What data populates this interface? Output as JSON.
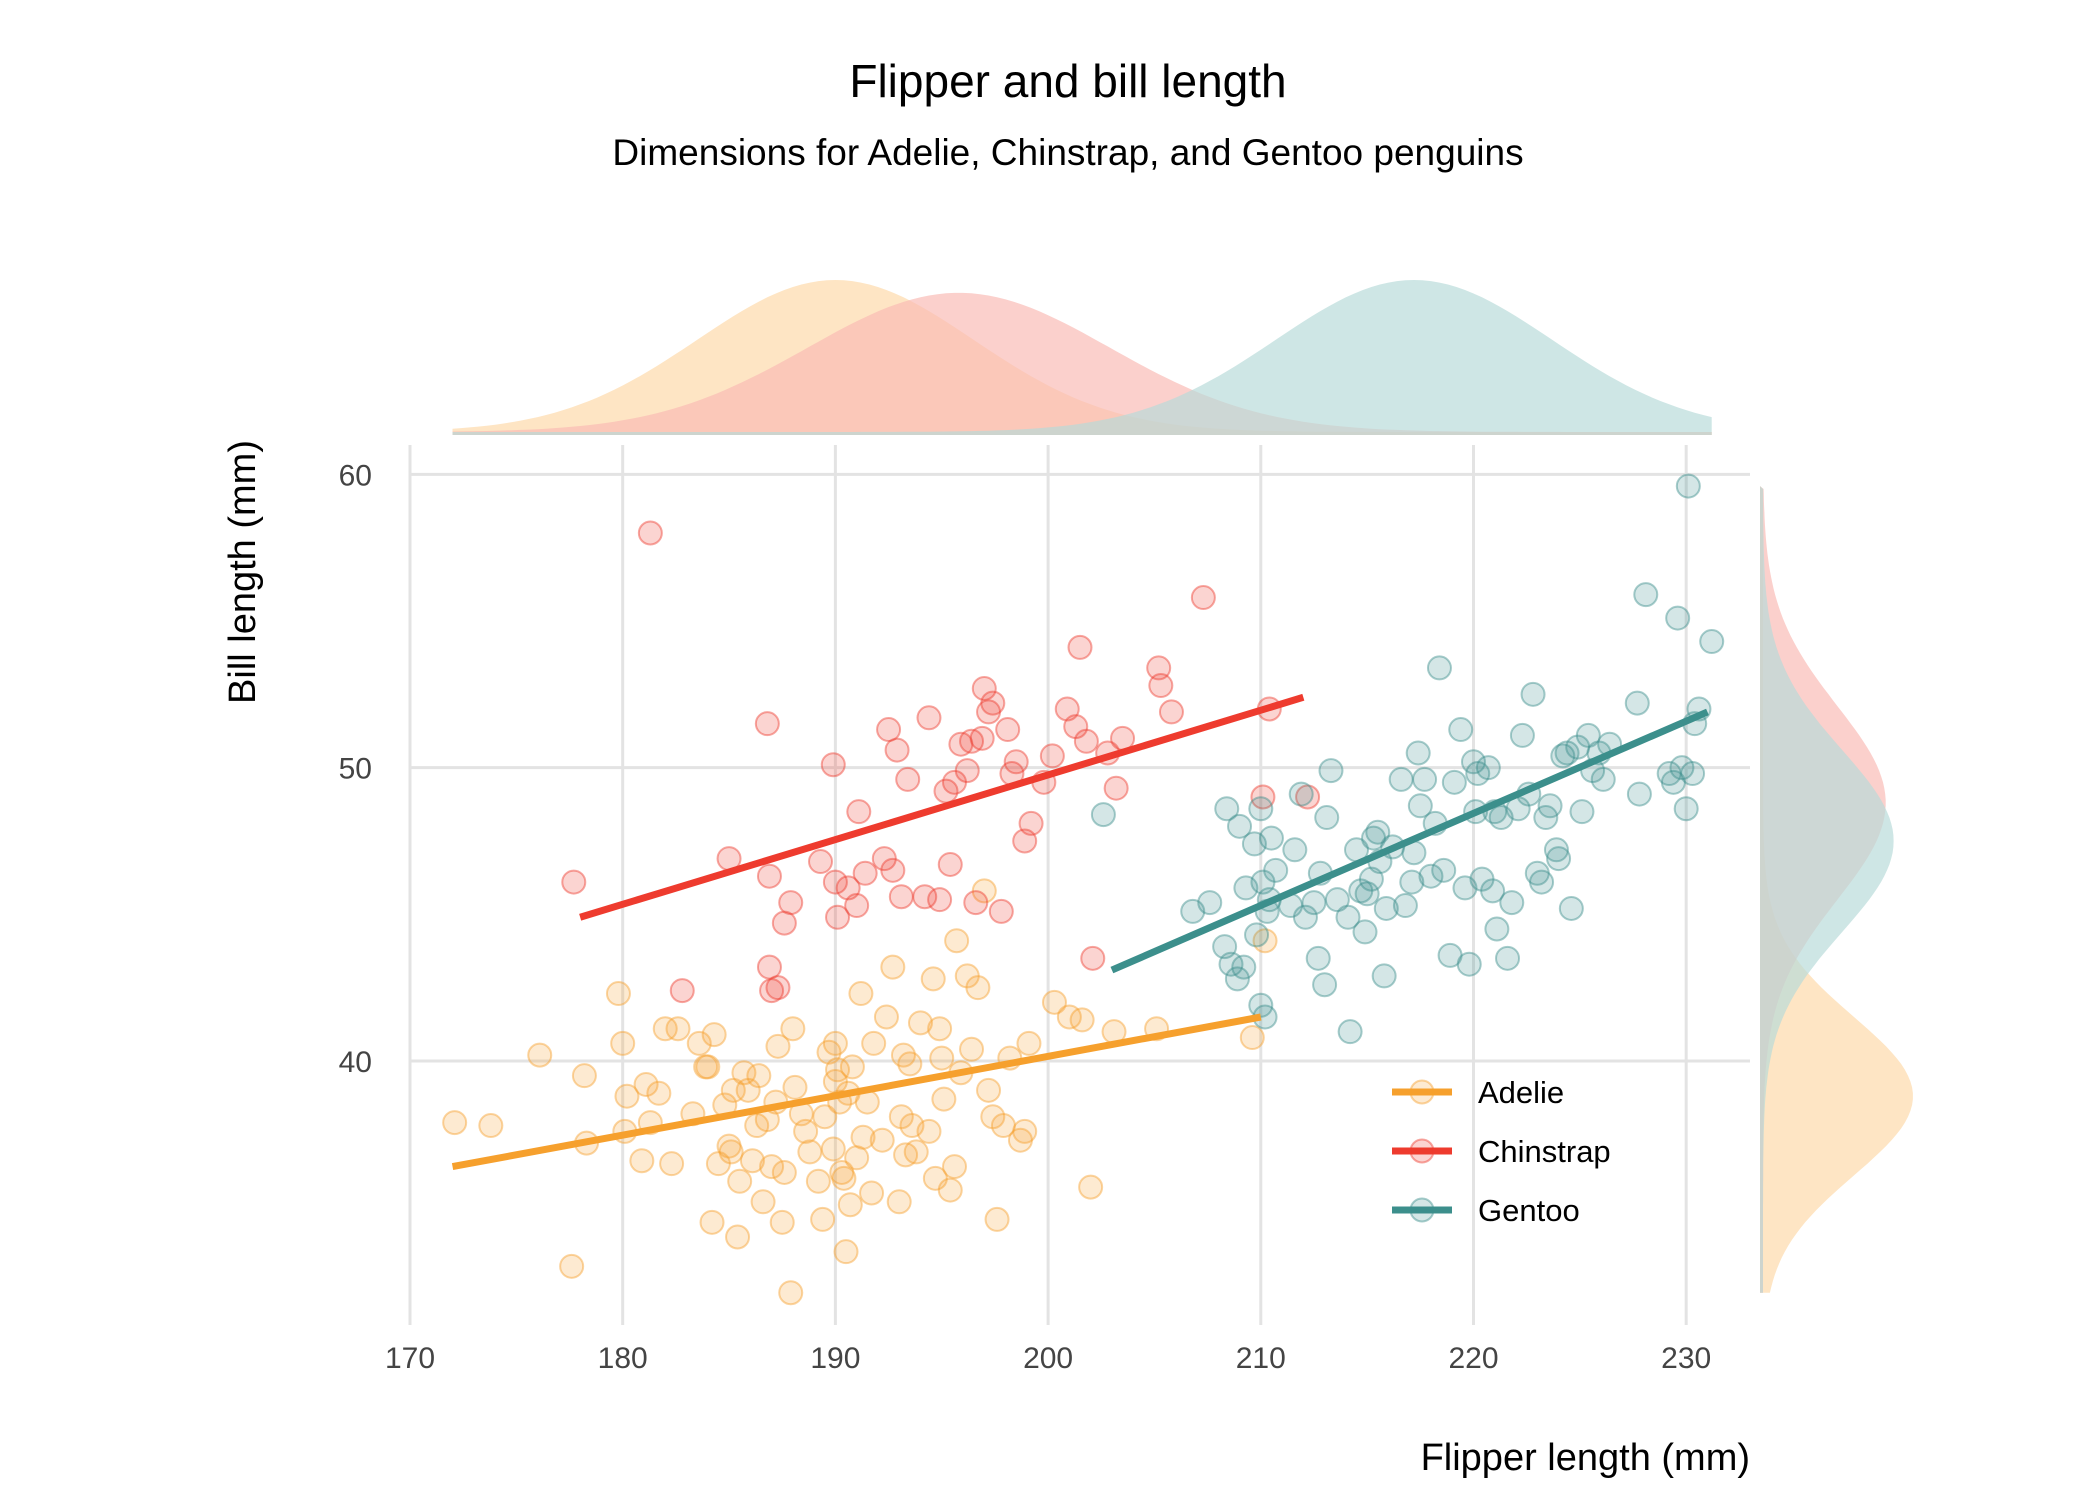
{
  "chart_data": {
    "type": "scatter",
    "title": "Flipper and bill length",
    "subtitle": "Dimensions for Adelie, Chinstrap, and Gentoo penguins",
    "xlabel": "Flipper length (mm)",
    "ylabel": "Bill length (mm)",
    "xlim": [
      170,
      233
    ],
    "ylim": [
      31,
      61
    ],
    "x_ticks": [
      170,
      180,
      190,
      200,
      210,
      220,
      230
    ],
    "y_ticks": [
      40,
      50,
      60
    ],
    "grid": true,
    "legend_position": "bottom-right",
    "marginal_densities": {
      "top": "flipper length by species",
      "right": "bill length by species"
    },
    "series": [
      {
        "name": "Adelie",
        "color": "#F6A02D",
        "fill": "#FDD9A8",
        "trend": {
          "x": [
            172,
            210
          ],
          "y": [
            36.4,
            41.5
          ]
        },
        "density_x": {
          "mean": 190,
          "sd": 6.5
        },
        "density_y": {
          "mean": 38.8,
          "sd": 2.7
        },
        "points": [
          [
            172.1,
            37.9
          ],
          [
            173.8,
            37.8
          ],
          [
            176.1,
            40.2
          ],
          [
            177.6,
            33.0
          ],
          [
            178.2,
            39.5
          ],
          [
            178.3,
            37.2
          ],
          [
            179.8,
            42.3
          ],
          [
            180.0,
            40.6
          ],
          [
            180.1,
            37.6
          ],
          [
            180.2,
            38.8
          ],
          [
            180.9,
            36.6
          ],
          [
            181.1,
            39.2
          ],
          [
            181.3,
            37.9
          ],
          [
            181.7,
            38.9
          ],
          [
            182.0,
            41.1
          ],
          [
            182.3,
            36.5
          ],
          [
            182.6,
            41.1
          ],
          [
            183.3,
            38.2
          ],
          [
            183.6,
            40.6
          ],
          [
            183.9,
            39.8
          ],
          [
            184.0,
            39.8
          ],
          [
            184.2,
            34.5
          ],
          [
            184.3,
            40.9
          ],
          [
            184.5,
            36.5
          ],
          [
            184.8,
            38.5
          ],
          [
            185.0,
            37.1
          ],
          [
            185.1,
            36.9
          ],
          [
            185.2,
            39.0
          ],
          [
            185.4,
            34.0
          ],
          [
            185.5,
            35.9
          ],
          [
            185.7,
            39.6
          ],
          [
            185.9,
            39.0
          ],
          [
            186.1,
            36.6
          ],
          [
            186.3,
            37.8
          ],
          [
            186.4,
            39.5
          ],
          [
            186.6,
            35.2
          ],
          [
            186.8,
            38.0
          ],
          [
            187.0,
            36.4
          ],
          [
            187.2,
            38.6
          ],
          [
            187.3,
            40.5
          ],
          [
            187.5,
            34.5
          ],
          [
            187.6,
            36.2
          ],
          [
            187.9,
            32.1
          ],
          [
            188.0,
            41.1
          ],
          [
            188.1,
            39.1
          ],
          [
            188.4,
            38.2
          ],
          [
            188.6,
            37.6
          ],
          [
            188.8,
            36.9
          ],
          [
            189.2,
            35.9
          ],
          [
            189.4,
            34.6
          ],
          [
            189.5,
            38.1
          ],
          [
            189.7,
            40.3
          ],
          [
            189.9,
            37.0
          ],
          [
            190.0,
            39.3
          ],
          [
            190.0,
            40.6
          ],
          [
            190.1,
            39.7
          ],
          [
            190.2,
            38.6
          ],
          [
            190.3,
            36.2
          ],
          [
            190.4,
            36.0
          ],
          [
            190.5,
            33.5
          ],
          [
            190.6,
            38.9
          ],
          [
            190.7,
            35.1
          ],
          [
            190.8,
            39.8
          ],
          [
            191.0,
            36.7
          ],
          [
            191.2,
            42.3
          ],
          [
            191.3,
            37.4
          ],
          [
            191.5,
            38.6
          ],
          [
            191.7,
            35.5
          ],
          [
            191.8,
            40.6
          ],
          [
            192.2,
            37.3
          ],
          [
            192.4,
            41.5
          ],
          [
            192.7,
            43.2
          ],
          [
            193.0,
            35.2
          ],
          [
            193.1,
            38.1
          ],
          [
            193.2,
            40.2
          ],
          [
            193.3,
            36.8
          ],
          [
            193.5,
            39.9
          ],
          [
            193.6,
            37.8
          ],
          [
            193.8,
            36.9
          ],
          [
            194.0,
            41.3
          ],
          [
            194.4,
            37.6
          ],
          [
            194.6,
            42.8
          ],
          [
            194.7,
            36.0
          ],
          [
            194.9,
            41.1
          ],
          [
            195.0,
            40.1
          ],
          [
            195.1,
            38.7
          ],
          [
            195.4,
            35.6
          ],
          [
            195.6,
            36.4
          ],
          [
            195.7,
            44.1
          ],
          [
            195.9,
            39.6
          ],
          [
            196.2,
            42.9
          ],
          [
            196.4,
            40.4
          ],
          [
            196.7,
            42.5
          ],
          [
            197.0,
            45.8
          ],
          [
            197.2,
            39.0
          ],
          [
            197.4,
            38.1
          ],
          [
            197.6,
            34.6
          ],
          [
            197.9,
            37.8
          ],
          [
            198.2,
            40.1
          ],
          [
            198.7,
            37.3
          ],
          [
            198.9,
            37.6
          ],
          [
            199.1,
            40.6
          ],
          [
            200.3,
            42.0
          ],
          [
            201.0,
            41.5
          ],
          [
            201.6,
            41.4
          ],
          [
            202.0,
            35.7
          ],
          [
            203.1,
            41.0
          ],
          [
            205.1,
            41.1
          ],
          [
            209.6,
            40.8
          ],
          [
            210.2,
            44.1
          ]
        ]
      },
      {
        "name": "Chinstrap",
        "color": "#EE3B2E",
        "fill": "#F9B9B4",
        "trend": {
          "x": [
            178,
            212
          ],
          "y": [
            44.9,
            52.4
          ]
        },
        "density_x": {
          "mean": 195.8,
          "sd": 7.1
        },
        "density_y": {
          "mean": 48.8,
          "sd": 3.3
        },
        "points": [
          [
            177.7,
            46.1
          ],
          [
            181.3,
            58.0
          ],
          [
            182.8,
            42.4
          ],
          [
            185.0,
            46.9
          ],
          [
            186.8,
            51.5
          ],
          [
            186.9,
            46.3
          ],
          [
            186.9,
            43.2
          ],
          [
            187.0,
            42.4
          ],
          [
            187.3,
            42.5
          ],
          [
            187.6,
            44.7
          ],
          [
            187.9,
            45.4
          ],
          [
            189.3,
            46.8
          ],
          [
            189.9,
            50.1
          ],
          [
            190.0,
            46.1
          ],
          [
            190.1,
            44.9
          ],
          [
            190.6,
            45.9
          ],
          [
            191.0,
            45.3
          ],
          [
            191.1,
            48.5
          ],
          [
            191.4,
            46.4
          ],
          [
            192.3,
            46.9
          ],
          [
            192.5,
            51.3
          ],
          [
            192.7,
            46.5
          ],
          [
            192.9,
            50.6
          ],
          [
            193.1,
            45.6
          ],
          [
            193.4,
            49.6
          ],
          [
            194.2,
            45.6
          ],
          [
            194.4,
            51.7
          ],
          [
            194.9,
            45.5
          ],
          [
            195.2,
            49.2
          ],
          [
            195.4,
            46.7
          ],
          [
            195.6,
            49.5
          ],
          [
            195.9,
            50.8
          ],
          [
            196.2,
            49.9
          ],
          [
            196.4,
            50.9
          ],
          [
            196.6,
            45.4
          ],
          [
            196.9,
            51.0
          ],
          [
            197.0,
            52.7
          ],
          [
            197.2,
            51.9
          ],
          [
            197.4,
            52.2
          ],
          [
            197.8,
            45.1
          ],
          [
            198.1,
            51.3
          ],
          [
            198.3,
            49.8
          ],
          [
            198.5,
            50.2
          ],
          [
            198.9,
            47.5
          ],
          [
            199.2,
            48.1
          ],
          [
            199.8,
            49.5
          ],
          [
            200.2,
            50.4
          ],
          [
            200.9,
            52.0
          ],
          [
            201.3,
            51.4
          ],
          [
            201.5,
            54.1
          ],
          [
            201.8,
            50.9
          ],
          [
            202.1,
            43.5
          ],
          [
            202.8,
            50.5
          ],
          [
            203.2,
            49.3
          ],
          [
            203.5,
            51.0
          ],
          [
            205.2,
            53.4
          ],
          [
            205.3,
            52.8
          ],
          [
            205.8,
            51.9
          ],
          [
            207.3,
            55.8
          ],
          [
            210.1,
            49.0
          ],
          [
            210.4,
            52.0
          ],
          [
            212.2,
            49.0
          ]
        ]
      },
      {
        "name": "Gentoo",
        "color": "#3C8F8C",
        "fill": "#B7DAD8",
        "trend": {
          "x": [
            203,
            231
          ],
          "y": [
            43.1,
            51.9
          ]
        },
        "density_x": {
          "mean": 217.2,
          "sd": 6.5
        },
        "density_y": {
          "mean": 47.5,
          "sd": 3.1
        },
        "points": [
          [
            202.6,
            48.4
          ],
          [
            206.8,
            45.1
          ],
          [
            207.6,
            45.4
          ],
          [
            208.3,
            43.9
          ],
          [
            208.4,
            48.6
          ],
          [
            208.6,
            43.3
          ],
          [
            208.9,
            42.8
          ],
          [
            209.0,
            48.0
          ],
          [
            209.2,
            43.2
          ],
          [
            209.3,
            45.9
          ],
          [
            209.7,
            47.4
          ],
          [
            209.8,
            44.3
          ],
          [
            210.0,
            48.6
          ],
          [
            210.0,
            41.9
          ],
          [
            210.1,
            46.1
          ],
          [
            210.2,
            41.5
          ],
          [
            210.3,
            45.1
          ],
          [
            210.4,
            45.5
          ],
          [
            210.5,
            47.6
          ],
          [
            210.7,
            46.5
          ],
          [
            211.4,
            45.3
          ],
          [
            211.6,
            47.2
          ],
          [
            211.9,
            49.1
          ],
          [
            212.1,
            44.9
          ],
          [
            212.5,
            45.4
          ],
          [
            212.7,
            43.5
          ],
          [
            212.8,
            46.4
          ],
          [
            213.0,
            42.6
          ],
          [
            213.1,
            48.3
          ],
          [
            213.3,
            49.9
          ],
          [
            213.6,
            45.5
          ],
          [
            214.1,
            44.9
          ],
          [
            214.2,
            41.0
          ],
          [
            214.5,
            47.2
          ],
          [
            214.7,
            45.8
          ],
          [
            214.9,
            44.4
          ],
          [
            215.0,
            45.7
          ],
          [
            215.2,
            46.2
          ],
          [
            215.3,
            47.6
          ],
          [
            215.5,
            47.8
          ],
          [
            215.6,
            46.8
          ],
          [
            215.8,
            42.9
          ],
          [
            215.9,
            45.2
          ],
          [
            216.2,
            47.3
          ],
          [
            216.6,
            49.6
          ],
          [
            216.8,
            45.3
          ],
          [
            217.1,
            46.1
          ],
          [
            217.2,
            47.1
          ],
          [
            217.4,
            50.5
          ],
          [
            217.5,
            48.7
          ],
          [
            217.7,
            49.6
          ],
          [
            218.0,
            46.3
          ],
          [
            218.2,
            48.1
          ],
          [
            218.4,
            53.4
          ],
          [
            218.6,
            46.5
          ],
          [
            218.9,
            43.6
          ],
          [
            219.1,
            49.5
          ],
          [
            219.4,
            51.3
          ],
          [
            219.6,
            45.9
          ],
          [
            219.8,
            43.3
          ],
          [
            220.0,
            50.2
          ],
          [
            220.1,
            48.5
          ],
          [
            220.2,
            49.8
          ],
          [
            220.4,
            46.2
          ],
          [
            220.7,
            50.0
          ],
          [
            220.9,
            45.8
          ],
          [
            221.0,
            48.5
          ],
          [
            221.1,
            44.5
          ],
          [
            221.3,
            48.3
          ],
          [
            221.6,
            43.5
          ],
          [
            221.8,
            45.4
          ],
          [
            222.1,
            48.6
          ],
          [
            222.3,
            51.1
          ],
          [
            222.6,
            49.1
          ],
          [
            222.8,
            52.5
          ],
          [
            223.0,
            46.4
          ],
          [
            223.2,
            46.1
          ],
          [
            223.4,
            48.3
          ],
          [
            223.6,
            48.7
          ],
          [
            223.9,
            47.2
          ],
          [
            224.0,
            46.9
          ],
          [
            224.2,
            50.4
          ],
          [
            224.4,
            50.5
          ],
          [
            224.6,
            45.2
          ],
          [
            224.9,
            50.7
          ],
          [
            225.1,
            48.5
          ],
          [
            225.4,
            51.1
          ],
          [
            225.6,
            49.9
          ],
          [
            225.9,
            50.5
          ],
          [
            226.1,
            49.6
          ],
          [
            226.4,
            50.8
          ],
          [
            227.7,
            52.2
          ],
          [
            227.8,
            49.1
          ],
          [
            228.1,
            55.9
          ],
          [
            229.2,
            49.8
          ],
          [
            229.4,
            49.5
          ],
          [
            229.6,
            55.1
          ],
          [
            229.8,
            50.0
          ],
          [
            230.0,
            48.6
          ],
          [
            230.1,
            59.6
          ],
          [
            230.3,
            49.8
          ],
          [
            230.4,
            51.5
          ],
          [
            230.6,
            52.0
          ],
          [
            231.2,
            54.3
          ]
        ]
      }
    ]
  }
}
